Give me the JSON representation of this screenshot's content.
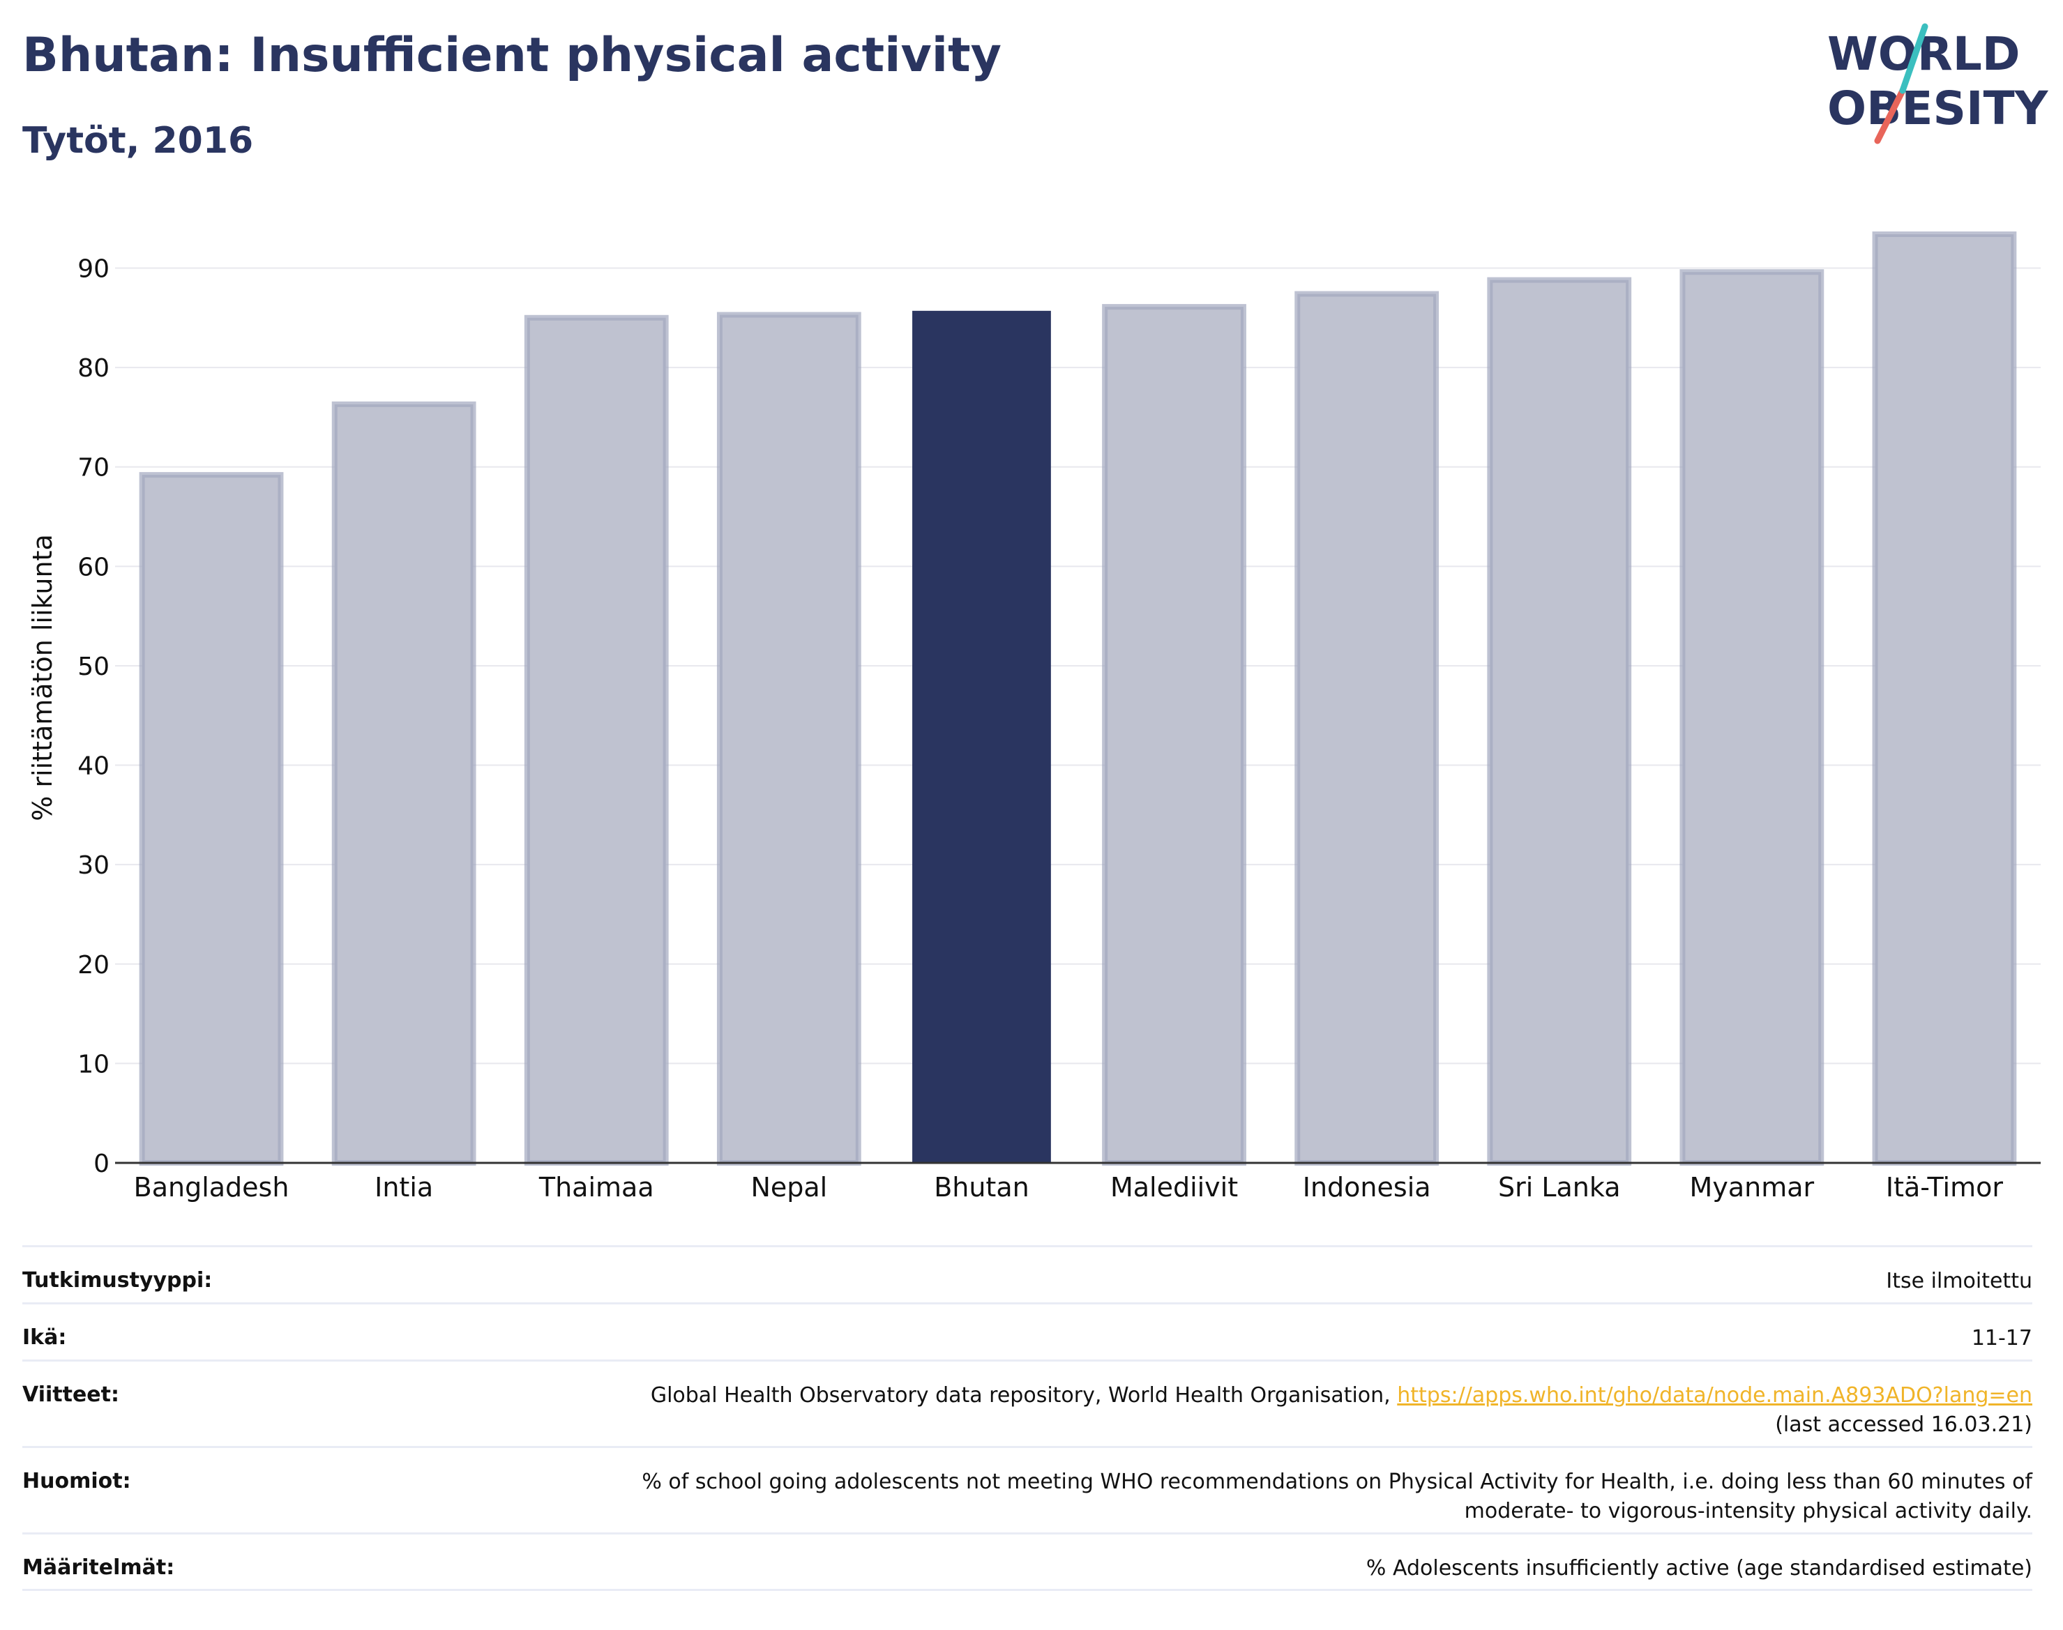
{
  "header": {
    "title": "Bhutan: Insufficient physical activity",
    "subtitle": "Tytöt, 2016"
  },
  "logo": {
    "line1": "WORLD",
    "line2": "OBESITY",
    "colors": {
      "text": "#2a3560",
      "slash_teal": "#3bbfbf",
      "slash_red": "#e8655a"
    }
  },
  "chart_data": {
    "type": "bar",
    "categories": [
      "Bangladesh",
      "Intia",
      "Thaimaa",
      "Nepal",
      "Bhutan",
      "Malediivit",
      "Indonesia",
      "Sri Lanka",
      "Myanmar",
      "Itä-Timor"
    ],
    "values": [
      69.2,
      76.3,
      85.0,
      85.3,
      85.7,
      86.1,
      87.4,
      88.8,
      89.6,
      93.4
    ],
    "highlight": "Bhutan",
    "ylabel": "% riittämätön liikunta",
    "ylim": [
      0,
      93.4
    ],
    "yticks": [
      0,
      10,
      20,
      30,
      40,
      50,
      60,
      70,
      80,
      90
    ],
    "grid": true,
    "colors": {
      "bar": "#bfc2d0",
      "bar_edge": "#a3a8bf",
      "highlight": "#2a3560",
      "grid": "#e8e8ee",
      "axis": "#333333"
    }
  },
  "info": {
    "study_type": {
      "label": "Tutkimustyyppi:",
      "value": "Itse ilmoitettu"
    },
    "age": {
      "label": "Ikä:",
      "value": "11-17"
    },
    "references": {
      "label": "Viitteet:",
      "text": "Global Health Observatory data repository, World Health Organisation,",
      "link": "https://apps.who.int/gho/data/node.main.A893ADO?lang=en",
      "accessed": "(last accessed 16.03.21)"
    },
    "notes": {
      "label": "Huomiot:",
      "line1": "% of school going adolescents not meeting WHO recommendations on Physical Activity for Health, i.e. doing less than 60 minutes of",
      "line2": "moderate- to vigorous-intensity physical activity daily."
    },
    "definitions": {
      "label": "Määritelmät:",
      "value": "% Adolescents insufficiently active (age standardised estimate)"
    }
  }
}
